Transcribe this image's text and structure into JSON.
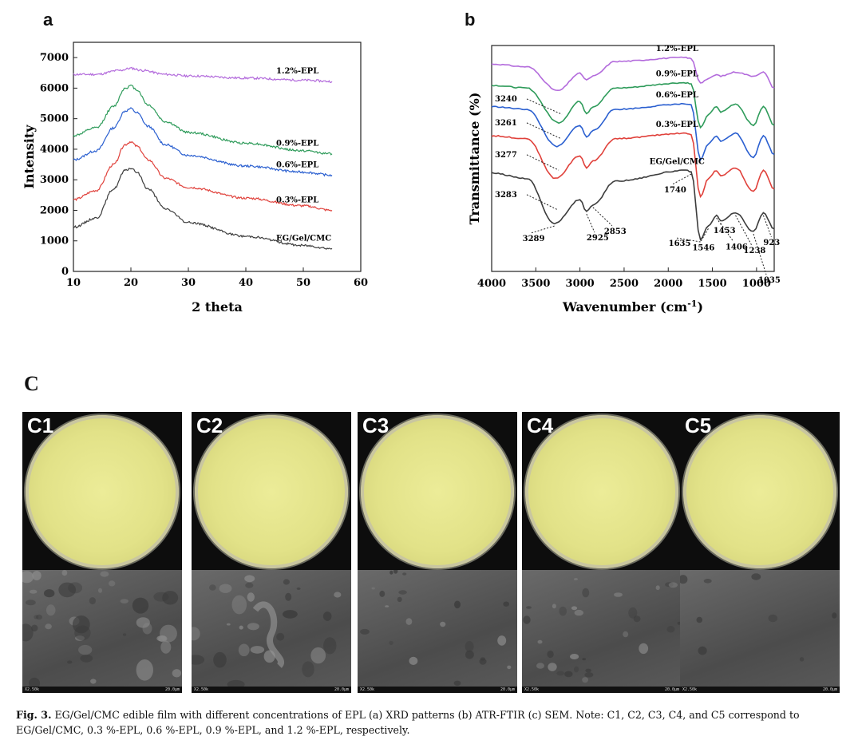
{
  "panels": {
    "a": "a",
    "b": "b",
    "c": "C"
  },
  "chart_data": [
    {
      "type": "line",
      "title": "",
      "xlabel": "2 theta",
      "ylabel": "Intensity",
      "xlim": [
        10,
        60
      ],
      "ylim": [
        0,
        7500
      ],
      "xticks": [
        10,
        20,
        30,
        40,
        50,
        60
      ],
      "yticks": [
        0,
        1000,
        2000,
        3000,
        4000,
        5000,
        6000,
        7000
      ],
      "series": [
        {
          "name": "1.2%-EPL",
          "color": "#b36bdc",
          "x": [
            10,
            14,
            18,
            20,
            22,
            26,
            30,
            40,
            50,
            55
          ],
          "values": [
            6450,
            6450,
            6580,
            6650,
            6580,
            6450,
            6400,
            6330,
            6260,
            6220
          ]
        },
        {
          "name": "0.9%-EPL",
          "color": "#2e9b5a",
          "x": [
            10,
            14,
            17,
            19,
            20,
            21,
            23,
            26,
            30,
            40,
            50,
            55
          ],
          "values": [
            4450,
            4700,
            5400,
            6000,
            6080,
            5950,
            5450,
            4900,
            4550,
            4200,
            3950,
            3850
          ]
        },
        {
          "name": "0.6%-EPL",
          "color": "#2a5fd0",
          "x": [
            10,
            14,
            17,
            19,
            20,
            21,
            23,
            26,
            30,
            40,
            50,
            55
          ],
          "values": [
            3650,
            3950,
            4700,
            5250,
            5330,
            5200,
            4750,
            4150,
            3800,
            3450,
            3250,
            3150
          ]
        },
        {
          "name": "0.3%-EPL",
          "color": "#e0413b",
          "x": [
            10,
            14,
            17,
            19,
            20,
            21,
            23,
            26,
            30,
            40,
            50,
            55
          ],
          "values": [
            2350,
            2650,
            3500,
            4150,
            4250,
            4100,
            3650,
            3050,
            2750,
            2400,
            2150,
            2000
          ]
        },
        {
          "name": "EG/Gel/CMC",
          "color": "#3c3c3c",
          "x": [
            10,
            14,
            17,
            19,
            20,
            21,
            23,
            26,
            30,
            40,
            50,
            55
          ],
          "values": [
            1450,
            1750,
            2700,
            3300,
            3380,
            3250,
            2700,
            2050,
            1600,
            1150,
            850,
            750
          ]
        }
      ]
    },
    {
      "type": "line",
      "title": "",
      "xlabel": "Wavenumber (cm",
      "xlabel_sup": "-1",
      "xlabel_end": ")",
      "ylabel": "Transmittance (%)",
      "xlim": [
        4000,
        800
      ],
      "xticks": [
        4000,
        3500,
        3000,
        2500,
        2000,
        1500,
        1000
      ],
      "series": [
        {
          "name": "1.2%-EPL",
          "color": "#b36bdc",
          "x": [
            4000,
            3600,
            3250,
            3000,
            2925,
            2853,
            2600,
            1800,
            1740,
            1635,
            1546,
            1453,
            1406,
            1238,
            1035,
            923,
            800
          ],
          "values": [
            9.3,
            9.2,
            8.3,
            8.95,
            8.7,
            8.85,
            9.4,
            9.55,
            9.5,
            8.6,
            8.75,
            8.9,
            8.85,
            9.0,
            8.85,
            9.0,
            8.4
          ]
        },
        {
          "name": "0.9%-EPL",
          "color": "#2e9b5a",
          "x": [
            4000,
            3600,
            3240,
            3000,
            2925,
            2853,
            2600,
            1800,
            1740,
            1635,
            1546,
            1453,
            1406,
            1238,
            1035,
            923,
            800
          ],
          "values": [
            8.5,
            8.4,
            7.1,
            7.9,
            7.45,
            7.7,
            8.4,
            8.6,
            8.55,
            6.9,
            7.4,
            7.7,
            7.5,
            7.8,
            7.0,
            7.7,
            7.0
          ]
        },
        {
          "name": "0.6%-EPL",
          "color": "#2a5fd0",
          "x": [
            4000,
            3600,
            3261,
            3000,
            2925,
            2853,
            2600,
            1800,
            1740,
            1635,
            1546,
            1453,
            1406,
            1238,
            1035,
            923,
            800
          ],
          "values": [
            7.7,
            7.6,
            6.2,
            7.0,
            6.55,
            6.8,
            7.6,
            7.8,
            7.75,
            5.7,
            6.3,
            6.6,
            6.4,
            6.7,
            5.8,
            6.6,
            5.9
          ]
        },
        {
          "name": "0.3%-EPL",
          "color": "#e0413b",
          "x": [
            4000,
            3600,
            3277,
            3000,
            2925,
            2853,
            2600,
            1800,
            1740,
            1635,
            1546,
            1453,
            1406,
            1238,
            1035,
            923,
            800
          ],
          "values": [
            6.6,
            6.5,
            5.0,
            5.85,
            5.4,
            5.65,
            6.5,
            6.7,
            6.65,
            4.3,
            5.0,
            5.3,
            5.1,
            5.4,
            4.5,
            5.3,
            4.6
          ]
        },
        {
          "name": "EG/Gel/CMC",
          "color": "#3c3c3c",
          "x": [
            4000,
            3600,
            3289,
            3000,
            2925,
            2853,
            2600,
            1800,
            1740,
            1635,
            1546,
            1453,
            1406,
            1238,
            1035,
            923,
            800
          ],
          "values": [
            5.2,
            5.0,
            3.3,
            4.2,
            3.75,
            4.0,
            4.9,
            5.3,
            5.25,
            2.7,
            3.2,
            3.6,
            3.4,
            3.7,
            3.0,
            3.7,
            3.1
          ]
        }
      ],
      "annotations": [
        "3240",
        "3261",
        "3277",
        "3283",
        "3289",
        "2925",
        "2853",
        "1740",
        "1635",
        "1546",
        "1453",
        "1406",
        "1238",
        "1035",
        "923"
      ]
    }
  ],
  "photos": [
    {
      "tag": "C1",
      "scale_left": "X2.50k",
      "scale_right": "20.0μm"
    },
    {
      "tag": "C2",
      "scale_left": "X2.50k",
      "scale_right": "20.0μm"
    },
    {
      "tag": "C3",
      "scale_left": "X2.50k",
      "scale_right": "20.0μm"
    },
    {
      "tag": "C4",
      "scale_left": "X2.50k",
      "scale_right": "20.0μm"
    },
    {
      "tag": "C5",
      "scale_left": "X2.50k",
      "scale_right": "20.0μm"
    }
  ],
  "caption": {
    "label": "Fig. 3.",
    "text": "EG/Gel/CMC edible film with different concentrations of EPL (a) XRD patterns (b) ATR-FTIR (c) SEM. Note: C1, C2, C3, C4, and C5 correspond to EG/Gel/CMC, 0.3 %-EPL, 0.6 %-EPL, 0.9 %-EPL, and 1.2 %-EPL, respectively."
  }
}
